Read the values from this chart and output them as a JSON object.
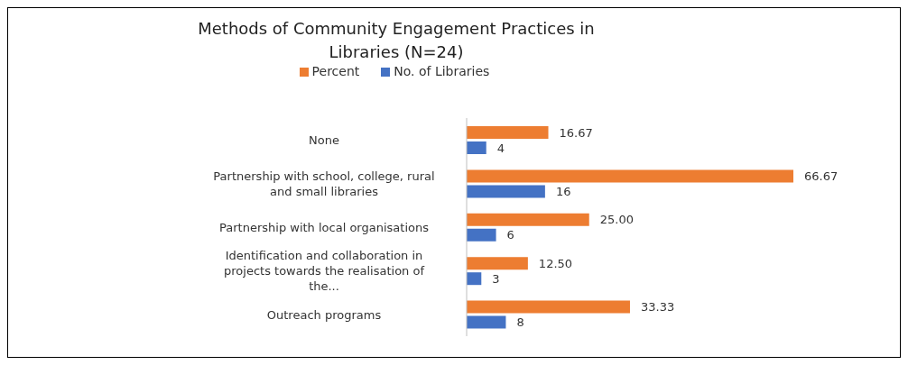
{
  "chart_data": {
    "type": "bar",
    "orientation": "horizontal",
    "title": "Methods of Community Engagement Practices in Libraries (N=24)",
    "categories": [
      "None",
      "Partnership with school, college, rural and small libraries",
      "Partnership with local organisations",
      "Identification and collaboration in projects towards the realisation of the...",
      "Outreach programs"
    ],
    "series": [
      {
        "name": "Percent",
        "color": "#ed7d31",
        "values": [
          16.67,
          66.67,
          25.0,
          12.5,
          33.33
        ],
        "value_labels": [
          "16.67",
          "66.67",
          "25.00",
          "12.50",
          "33.33"
        ]
      },
      {
        "name": "No. of Libraries",
        "color": "#4472c4",
        "values": [
          4,
          16,
          6,
          3,
          8
        ],
        "value_labels": [
          "4",
          "16",
          "6",
          "3",
          "8"
        ]
      }
    ],
    "legend": "top",
    "grid": false
  }
}
